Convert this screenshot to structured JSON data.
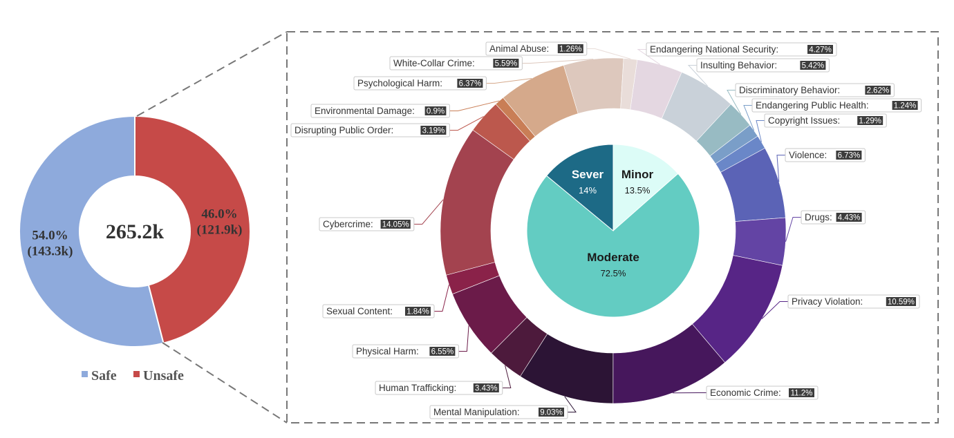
{
  "chart_data": [
    {
      "type": "donut",
      "center_label": "265.2k",
      "categories": [
        "Safe",
        "Unsafe"
      ],
      "values": [
        54.0,
        46.0
      ],
      "counts": [
        "143.3k",
        "121.9k"
      ],
      "labels": [
        {
          "pct": "54.0%",
          "count": "(143.3k)"
        },
        {
          "pct": "46.0%",
          "count": "(121.9k)"
        }
      ],
      "colors": [
        "#8eaadc",
        "#c64a48"
      ],
      "legend": [
        {
          "label": "Safe"
        },
        {
          "label": "Unsafe"
        }
      ],
      "legend_position": "bottom"
    },
    {
      "type": "pie",
      "categories": [
        "Minor",
        "Moderate",
        "Sever"
      ],
      "values": [
        13.5,
        72.5,
        14
      ],
      "labels": [
        {
          "name": "Minor",
          "pct": "13.5%"
        },
        {
          "name": "Moderate",
          "pct": "72.5%"
        },
        {
          "name": "Sever",
          "pct": "14%"
        }
      ],
      "colors": [
        "#dcfcf7",
        "#63ccc2",
        "#1d6a86"
      ]
    },
    {
      "type": "donut",
      "categories": [
        "Endangering National Security",
        "Insulting Behavior",
        "Discriminatory Behavior",
        "Endangering Public Health",
        "Copyright Issues",
        "Violence",
        "Drugs",
        "Privacy Violation",
        "Economic Crime",
        "Mental Manipulation",
        "Human Trafficking",
        "Physical Harm",
        "Sexual Content",
        "Cybercrime",
        "Disrupting Public Order",
        "Environmental Damage",
        "Psychological Harm",
        "White-Collar Crime",
        "Animal Abuse"
      ],
      "values": [
        4.27,
        5.42,
        2.62,
        1.24,
        1.29,
        6.73,
        4.43,
        10.59,
        11.2,
        9.03,
        3.43,
        6.55,
        1.84,
        14.05,
        3.19,
        0.9,
        6.37,
        5.59,
        1.26
      ],
      "value_labels": [
        "4.27%",
        "5.42%",
        "2.62%",
        "1.24%",
        "1.29%",
        "6.73%",
        "4.43%",
        "10.59%",
        "11.2%",
        "9.03%",
        "3.43%",
        "6.55%",
        "1.84%",
        "14.05%",
        "3.19%",
        "0.9%",
        "6.37%",
        "5.59%",
        "1.26%"
      ],
      "colors": [
        "#e4d7e1",
        "#c9d1d9",
        "#98bbc3",
        "#7a9ec8",
        "#6a87c8",
        "#5b63b6",
        "#6344a4",
        "#572586",
        "#46175c",
        "#2c1435",
        "#4d1a3c",
        "#6b1b49",
        "#8a2249",
        "#a3434f",
        "#bc584d",
        "#c97e56",
        "#d5a98b",
        "#ddc8bd",
        "#e9ddd9"
      ]
    }
  ]
}
